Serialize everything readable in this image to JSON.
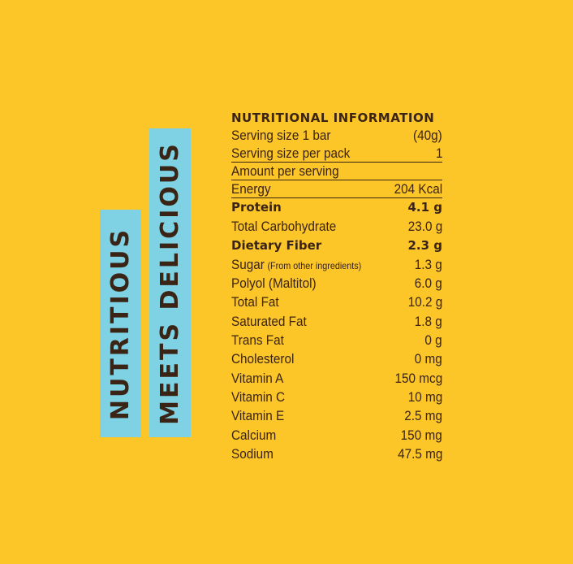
{
  "side_text": {
    "left": "NUTRITIOUS",
    "right": "MEETS DELICIOUS"
  },
  "panel": {
    "title": "NUTRITIONAL INFORMATION",
    "serving_size_label": "Serving size 1 bar",
    "serving_size_value": "(40g)",
    "serving_per_pack_label": "Serving size per pack",
    "serving_per_pack_value": "1",
    "amount_per_serving": "Amount per serving",
    "energy_label": "Energy",
    "energy_value": "204 Kcal"
  },
  "nutrients": [
    {
      "label": "Protein",
      "value": "4.1 g",
      "bold": true
    },
    {
      "label": "Total Carbohydrate",
      "value": "23.0 g"
    },
    {
      "label": "Dietary Fiber",
      "value": "2.3 g",
      "bold": true
    },
    {
      "label": "Sugar",
      "note": "(From other ingredients)",
      "value": "1.3 g"
    },
    {
      "label": "Polyol (Maltitol)",
      "value": "6.0 g"
    },
    {
      "label": "Total Fat",
      "value": "10.2 g"
    },
    {
      "label": "Saturated Fat",
      "value": "1.8 g"
    },
    {
      "label": "Trans Fat",
      "value": "0 g"
    },
    {
      "label": "Cholesterol",
      "value": "0 mg"
    },
    {
      "label": "Vitamin A",
      "value": "150 mcg"
    },
    {
      "label": "Vitamin C",
      "value": "10 mg"
    },
    {
      "label": "Vitamin E",
      "value": "2.5 mg"
    },
    {
      "label": "Calcium",
      "value": "150 mg"
    },
    {
      "label": "Sodium",
      "value": "47.5 mg"
    }
  ],
  "colors": {
    "background": "#fcc528",
    "bar": "#7fd2e3",
    "text": "#3a2416"
  }
}
